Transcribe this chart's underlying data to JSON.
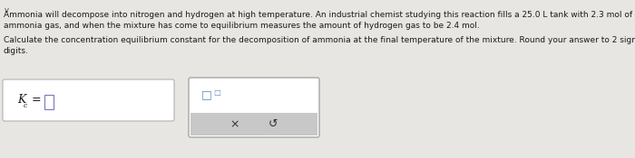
{
  "background_color": "#e8e6e2",
  "text_line1": "Ammonia will decompose into nitrogen and hydrogen at high temperature. An industrial chemist studying this reaction fills a 25.0 L tank with 2.3 mol of",
  "text_line2": "ammonia gas, and when the mixture has come to equilibrium measures the amount of hydrogen gas to be 2.4 mol.",
  "text_line3": "Calculate the concentration equilibrium constant for the decomposition of ammonia at the final temperature of the mixture. Round your answer to 2 significant",
  "text_line4": "digits.",
  "kc_label": "K",
  "kc_sub": "c",
  "equals_sign": " =",
  "font_size_body": 6.5,
  "text_color": "#1a1a1a",
  "box_edge_color": "#aaaaaa",
  "box_face_color": "#ffffff",
  "chevron_color": "#444444",
  "bottom_panel_color": "#c8c8c8",
  "x_color": "#333333",
  "refresh_color": "#333333",
  "cursor_edge_color": "#7777bb",
  "icon_color": "#6688bb"
}
